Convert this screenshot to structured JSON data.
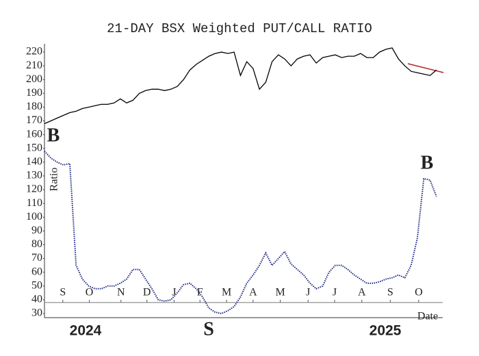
{
  "chart_data": {
    "type": "line",
    "title": "21-DAY BSX Weighted PUT/CALL RATIO",
    "y_label": "Ratio",
    "x_label": "Date",
    "x": [
      0,
      1,
      2,
      3,
      4,
      5,
      6,
      7,
      8,
      9,
      10,
      11,
      12,
      13,
      14,
      15,
      16,
      17,
      18,
      19,
      20,
      21,
      22,
      23,
      24,
      25,
      26,
      27,
      28,
      29,
      30,
      31,
      32,
      33,
      34,
      35,
      36,
      37,
      38,
      39,
      40,
      41,
      42,
      43,
      44,
      45,
      46,
      47,
      48,
      49,
      50,
      51,
      52,
      53,
      54,
      55,
      56,
      57,
      58,
      59,
      60,
      61,
      62
    ],
    "series": [
      {
        "name": "BSX",
        "color": "#000000",
        "style": "solid",
        "values": [
          168,
          170,
          172,
          174,
          176,
          177,
          179,
          180,
          181,
          182,
          182,
          183,
          186,
          183,
          185,
          190,
          192,
          193,
          193,
          192,
          193,
          195,
          200,
          207,
          211,
          214,
          217,
          219,
          220,
          219,
          220,
          203,
          213,
          208,
          193,
          198,
          213,
          218,
          215,
          210,
          215,
          217,
          218,
          212,
          216,
          217,
          218,
          216,
          217,
          217,
          219,
          216,
          216,
          220,
          222,
          223,
          215,
          210,
          206,
          205,
          204,
          203,
          207
        ]
      },
      {
        "name": "Ratio",
        "color": "#1a237e",
        "style": "dotted",
        "values": [
          148,
          143,
          140,
          138,
          139,
          65,
          55,
          50,
          48,
          48,
          50,
          50,
          52,
          55,
          62,
          62,
          55,
          48,
          40,
          39,
          40,
          45,
          51,
          52,
          48,
          42,
          34,
          31,
          30,
          32,
          35,
          42,
          52,
          58,
          65,
          74,
          65,
          70,
          75,
          66,
          62,
          58,
          52,
          48,
          50,
          60,
          65,
          65,
          62,
          58,
          55,
          52,
          52,
          53,
          55,
          56,
          58,
          56,
          65,
          85,
          128,
          127,
          115
        ]
      }
    ],
    "xlim": [
      0,
      63
    ],
    "ylim": [
      27,
      225
    ],
    "xticks": [
      {
        "value": 2.9,
        "label": "S"
      },
      {
        "value": 7.1,
        "label": "O"
      },
      {
        "value": 12.1,
        "label": "N"
      },
      {
        "value": 16.2,
        "label": "D"
      },
      {
        "value": 20.5,
        "label": "J"
      },
      {
        "value": 24.6,
        "label": "F"
      },
      {
        "value": 28.8,
        "label": "M"
      },
      {
        "value": 33,
        "label": "A"
      },
      {
        "value": 37.3,
        "label": "M"
      },
      {
        "value": 41.7,
        "label": "J"
      },
      {
        "value": 45.9,
        "label": "J"
      },
      {
        "value": 50.2,
        "label": "A"
      },
      {
        "value": 54.7,
        "label": "S"
      },
      {
        "value": 59.2,
        "label": "O"
      }
    ],
    "yticks": [
      30,
      40,
      50,
      60,
      70,
      80,
      90,
      100,
      110,
      120,
      130,
      140,
      150,
      160,
      170,
      180,
      190,
      200,
      210,
      220
    ],
    "reference_line": 38,
    "year_labels": [
      "2024",
      "2025"
    ],
    "annotations": [
      {
        "text": "B",
        "color": "#b22222"
      },
      {
        "text": "S",
        "color": "#b22222"
      },
      {
        "text": "B",
        "color": "#2e9e3e"
      }
    ]
  }
}
